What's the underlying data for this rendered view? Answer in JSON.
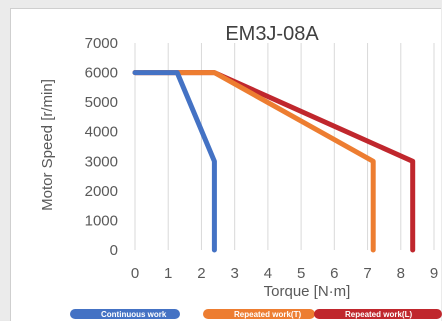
{
  "chart_data": {
    "type": "line",
    "title": "EM3J-08A",
    "xlabel": "Torque [N·m]",
    "ylabel": "Motor Speed [r/min]",
    "xlim": [
      0,
      9
    ],
    "ylim": [
      0,
      7000
    ],
    "x_ticks": [
      "0",
      "1",
      "2",
      "3",
      "4",
      "5",
      "6",
      "7",
      "8",
      "9"
    ],
    "y_ticks": [
      "0",
      "1000",
      "2000",
      "3000",
      "4000",
      "5000",
      "6000",
      "7000"
    ],
    "grid": "vertical",
    "legend_position": "bottom",
    "series": [
      {
        "name": "Continuous work",
        "color": "#4472c4",
        "points": [
          [
            0,
            6000
          ],
          [
            1.27,
            6000
          ],
          [
            2.39,
            3000
          ],
          [
            2.39,
            0
          ]
        ]
      },
      {
        "name": "Repeated work(T)",
        "color": "#ed7d31",
        "points": [
          [
            0,
            6000
          ],
          [
            2.39,
            6000
          ],
          [
            7.17,
            3000
          ],
          [
            7.17,
            0
          ]
        ]
      },
      {
        "name": "Repeated work(L)",
        "color": "#c0272d",
        "points": [
          [
            0,
            6000
          ],
          [
            2.39,
            6000
          ],
          [
            8.36,
            3000
          ],
          [
            8.36,
            0
          ]
        ]
      }
    ]
  }
}
